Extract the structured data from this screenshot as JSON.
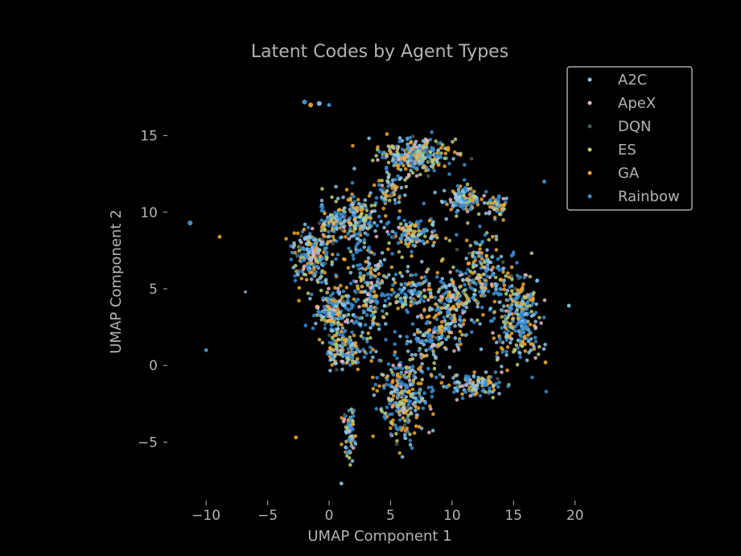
{
  "chart_data": {
    "type": "scatter",
    "title": "Latent Codes by Agent Types",
    "xlabel": "UMAP Component 1",
    "ylabel": "UMAP Component 2",
    "xlim": [
      -12.5,
      21.0
    ],
    "ylim": [
      -8.6,
      18.6
    ],
    "xticks": [
      -10,
      -5,
      0,
      5,
      10,
      15,
      20
    ],
    "xtick_labels": [
      "−10",
      "−5",
      "0",
      "5",
      "10",
      "15",
      "20"
    ],
    "yticks": [
      -5,
      0,
      5,
      10,
      15
    ],
    "ytick_labels": [
      "−5",
      "0",
      "5",
      "10",
      "15"
    ],
    "grid": false,
    "legend_position": "top-right",
    "series": [
      {
        "name": "A2C",
        "color": "#8ec6e8"
      },
      {
        "name": "ApeX",
        "color": "#e8b4c4"
      },
      {
        "name": "DQN",
        "color": "#4a5a54"
      },
      {
        "name": "ES",
        "color": "#b8cf7a"
      },
      {
        "name": "GA",
        "color": "#f0a830"
      },
      {
        "name": "Rainbow",
        "color": "#3a8fd6"
      }
    ],
    "clusters": [
      {
        "cx": 6.9,
        "cy": 13.7,
        "rx": 2.6,
        "ry": 1.0,
        "n": 320
      },
      {
        "cx": 10.8,
        "cy": 10.9,
        "rx": 1.4,
        "ry": 0.7,
        "n": 140
      },
      {
        "cx": 13.6,
        "cy": 10.3,
        "rx": 0.9,
        "ry": 0.7,
        "n": 50
      },
      {
        "cx": -1.4,
        "cy": 7.2,
        "rx": 1.7,
        "ry": 1.6,
        "n": 220
      },
      {
        "cx": 0.2,
        "cy": 9.4,
        "rx": 0.9,
        "ry": 1.1,
        "n": 80
      },
      {
        "cx": 2.4,
        "cy": 9.5,
        "rx": 1.6,
        "ry": 1.6,
        "n": 160
      },
      {
        "cx": 3.4,
        "cy": 5.0,
        "rx": 1.4,
        "ry": 2.8,
        "n": 180
      },
      {
        "cx": 0.4,
        "cy": 3.5,
        "rx": 1.4,
        "ry": 1.4,
        "n": 160
      },
      {
        "cx": 1.4,
        "cy": 1.0,
        "rx": 1.5,
        "ry": 1.2,
        "n": 150
      },
      {
        "cx": 6.8,
        "cy": 8.6,
        "rx": 2.0,
        "ry": 1.0,
        "n": 120
      },
      {
        "cx": 6.7,
        "cy": 4.7,
        "rx": 1.5,
        "ry": 1.3,
        "n": 100
      },
      {
        "cx": 10.0,
        "cy": 3.8,
        "rx": 1.8,
        "ry": 2.4,
        "n": 210
      },
      {
        "cx": 12.4,
        "cy": 6.2,
        "rx": 1.5,
        "ry": 2.4,
        "n": 150
      },
      {
        "cx": 15.3,
        "cy": 3.2,
        "rx": 1.7,
        "ry": 2.8,
        "n": 290
      },
      {
        "cx": 6.1,
        "cy": -1.8,
        "rx": 1.9,
        "ry": 2.6,
        "n": 290
      },
      {
        "cx": 12.0,
        "cy": -1.3,
        "rx": 2.4,
        "ry": 0.8,
        "n": 120
      },
      {
        "cx": 1.6,
        "cy": -4.5,
        "rx": 0.5,
        "ry": 1.5,
        "n": 70
      },
      {
        "cx": 8.3,
        "cy": 1.8,
        "rx": 1.2,
        "ry": 1.0,
        "n": 80
      },
      {
        "cx": 5.0,
        "cy": 11.5,
        "rx": 1.2,
        "ry": 1.3,
        "n": 60
      }
    ],
    "outliers": [
      {
        "x": -11.3,
        "y": 9.3,
        "s": 5
      },
      {
        "x": -8.9,
        "y": 8.4,
        "s": 4
      },
      {
        "x": -6.8,
        "y": 4.8,
        "s": 3
      },
      {
        "x": -10.0,
        "y": 1.0,
        "s": 4
      },
      {
        "x": -2.7,
        "y": -4.7,
        "s": 4
      },
      {
        "x": 1.0,
        "y": -7.7,
        "s": 4
      },
      {
        "x": 17.5,
        "y": 12.0,
        "s": 4
      },
      {
        "x": 17.6,
        "y": 0.2,
        "s": 4
      },
      {
        "x": 19.5,
        "y": 3.9,
        "s": 4
      },
      {
        "x": -2.0,
        "y": 17.2,
        "s": 5
      },
      {
        "x": -1.5,
        "y": 17.0,
        "s": 5
      },
      {
        "x": -0.8,
        "y": 17.1,
        "s": 5
      },
      {
        "x": 0.0,
        "y": 17.0,
        "s": 4
      }
    ]
  }
}
